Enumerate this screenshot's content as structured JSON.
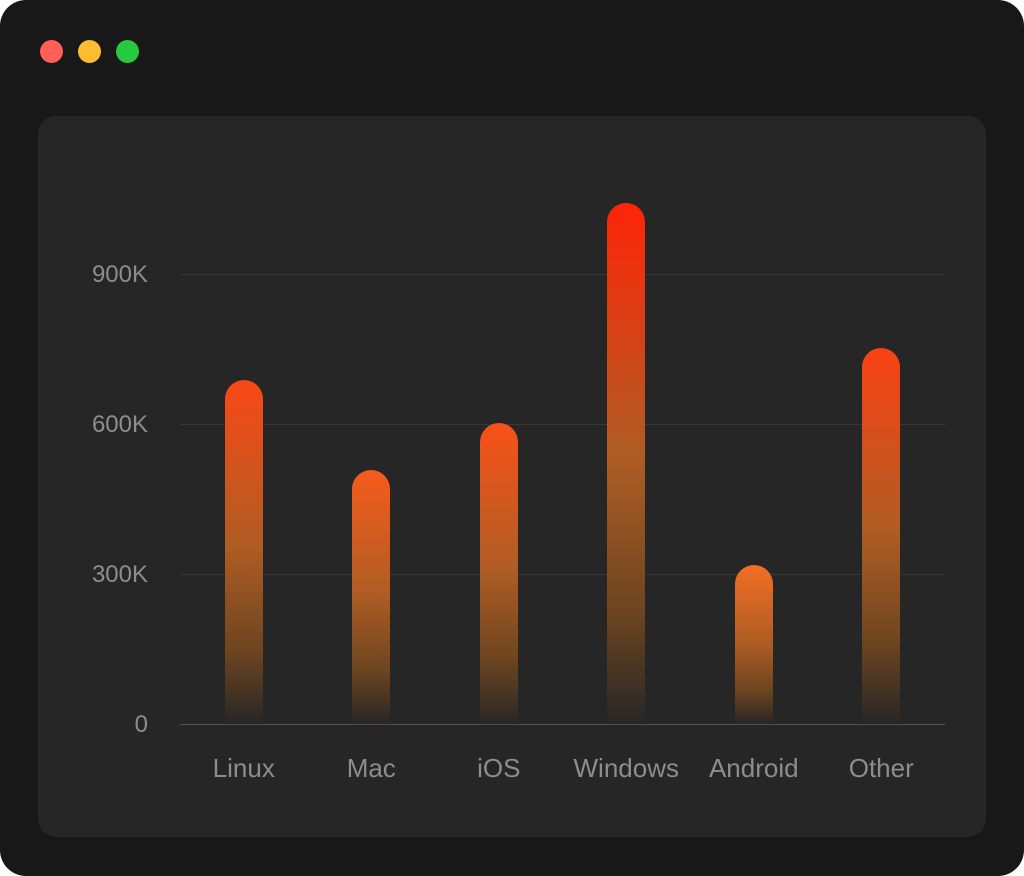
{
  "window": {
    "background": "#181818",
    "panel_background": "#262626",
    "traffic_lights": [
      {
        "name": "close-button",
        "color": "#ff5f57"
      },
      {
        "name": "minimize-button",
        "color": "#febc2e"
      },
      {
        "name": "zoom-button",
        "color": "#28c840"
      }
    ]
  },
  "chart_data": {
    "type": "bar",
    "categories": [
      "Linux",
      "Mac",
      "iOS",
      "Windows",
      "Android",
      "Other"
    ],
    "values": [
      690000,
      510000,
      605000,
      1045000,
      320000,
      755000
    ],
    "title": "",
    "xlabel": "",
    "ylabel": "",
    "ylim": [
      0,
      1120000
    ],
    "yticks": [
      {
        "value": 0,
        "label": "0"
      },
      {
        "value": 300000,
        "label": "300K"
      },
      {
        "value": 600000,
        "label": "600K"
      },
      {
        "value": 900000,
        "label": "900K"
      }
    ],
    "grid": true,
    "legend": false,
    "bar_style": {
      "top_color_low_value": "#ee8f30",
      "top_color_high_value": "#ff2408",
      "mid_color": "#b05d24",
      "lower_color": "#6e4520",
      "base_color": "rgba(46,38,32,0.12)"
    },
    "axis_label_color": "#8d8d8d",
    "gridline_color": "#383838",
    "baseline_color": "#545454"
  }
}
